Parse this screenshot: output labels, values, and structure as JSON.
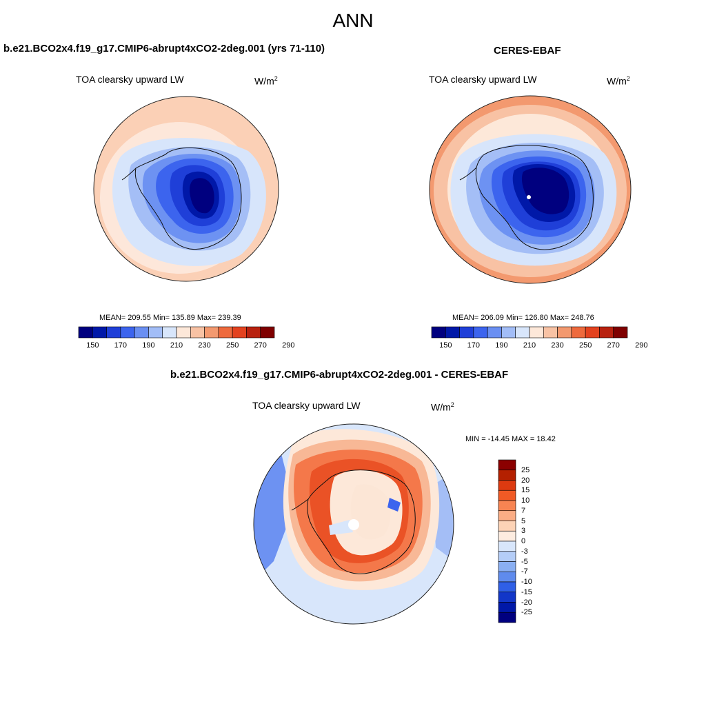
{
  "title": "ANN",
  "panels": [
    {
      "id": "model",
      "title": "b.e21.BCO2x4.f19_g17.CMIP6-abrupt4xCO2-2deg.001 (yrs 71-110)",
      "variable": "TOA clearsky upward LW",
      "units_base": "W/m",
      "units_sup": "2",
      "stats": "MEAN= 209.55  Min= 135.89  Max= 239.39",
      "mean": 209.55,
      "min": 135.89,
      "max": 239.39
    },
    {
      "id": "obs",
      "title": "CERES-EBAF",
      "variable": "TOA clearsky upward LW",
      "units_base": "W/m",
      "units_sup": "2",
      "stats": "MEAN= 206.09  Min= 126.80  Max= 248.76",
      "mean": 206.09,
      "min": 126.8,
      "max": 248.76
    },
    {
      "id": "diff",
      "title": "b.e21.BCO2x4.f19_g17.CMIP6-abrupt4xCO2-2deg.001 - CERES-EBAF",
      "variable": "TOA clearsky upward LW",
      "units_base": "W/m",
      "units_sup": "2",
      "stats": "MIN = -14.45 MAX =  18.42",
      "min": -14.45,
      "max": 18.42
    }
  ],
  "colorbar_abs": {
    "colors": [
      "#00007f",
      "#0018a8",
      "#1f3fd8",
      "#3c64ee",
      "#6a8ff2",
      "#a2bdf7",
      "#d8e6fb",
      "#fde8d9",
      "#f8c2a4",
      "#f3996f",
      "#ee6a3d",
      "#e3421f",
      "#b8210f",
      "#7f0000"
    ],
    "tick_labels": [
      "150",
      "170",
      "190",
      "210",
      "230",
      "250",
      "270",
      "290"
    ]
  },
  "colorbar_diff": {
    "colors": [
      "#8b0000",
      "#b42000",
      "#dd3a10",
      "#f05a25",
      "#f78452",
      "#fbad85",
      "#fdd3b6",
      "#fdece0",
      "#d8e6fb",
      "#b4cdf7",
      "#8aaff2",
      "#5f8bed",
      "#2f5fe6",
      "#1236c8",
      "#0018a8",
      "#00007f"
    ],
    "tick_labels": [
      "25",
      "20",
      "15",
      "10",
      "7",
      "5",
      "3",
      "0",
      "-3",
      "-5",
      "-7",
      "-10",
      "-15",
      "-20",
      "-25"
    ]
  }
}
